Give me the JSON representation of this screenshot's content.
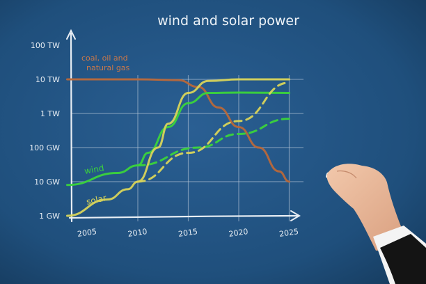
{
  "chart_data": {
    "type": "line",
    "title": "wind and solar power",
    "x_ticks": [
      "2005",
      "2010",
      "2015",
      "2020",
      "2025"
    ],
    "y_ticks": [
      "1 GW",
      "10 GW",
      "100 GW",
      "1 TW",
      "10 TW",
      "100 TW"
    ],
    "y_scale": "log",
    "xlim": [
      2003,
      2027
    ],
    "grid": true,
    "series": [
      {
        "name": "coal, oil and natural gas",
        "color": "#b8683a",
        "style": "solid",
        "points": [
          [
            2003,
            10
          ],
          [
            2010,
            10
          ],
          [
            2014,
            9.5
          ],
          [
            2016,
            6
          ],
          [
            2018,
            1.5
          ],
          [
            2020,
            0.4
          ],
          [
            2022,
            0.1
          ],
          [
            2024,
            0.02
          ],
          [
            2025,
            0.01
          ]
        ]
      },
      {
        "name": "wind",
        "color": "#3bd43b",
        "style": "solid",
        "points": [
          [
            2003,
            0.008
          ],
          [
            2008,
            0.018
          ],
          [
            2010,
            0.03
          ],
          [
            2011,
            0.07
          ],
          [
            2013,
            0.4
          ],
          [
            2015,
            2
          ],
          [
            2017,
            4
          ],
          [
            2020,
            4.1
          ],
          [
            2025,
            4
          ]
        ]
      },
      {
        "name": "wind (projected)",
        "color": "#3bd43b",
        "style": "dashed",
        "points": [
          [
            2010,
            0.03
          ],
          [
            2016,
            0.1
          ],
          [
            2020,
            0.25
          ],
          [
            2025,
            0.7
          ]
        ]
      },
      {
        "name": "solar",
        "color": "#d8d45a",
        "style": "solid",
        "points": [
          [
            2003,
            0.001
          ],
          [
            2007,
            0.003
          ],
          [
            2009,
            0.006
          ],
          [
            2010,
            0.01
          ],
          [
            2012,
            0.1
          ],
          [
            2013,
            0.5
          ],
          [
            2015,
            4
          ],
          [
            2017,
            9
          ],
          [
            2020,
            10
          ],
          [
            2025,
            10
          ]
        ]
      },
      {
        "name": "solar (projected)",
        "color": "#d8d45a",
        "style": "dashed",
        "points": [
          [
            2010,
            0.01
          ],
          [
            2015,
            0.07
          ],
          [
            2020,
            0.6
          ],
          [
            2025,
            8
          ]
        ]
      }
    ],
    "labels": {
      "fossil": "coal, oil and natural gas",
      "wind": "wind",
      "solar": "solar"
    }
  },
  "colors": {
    "board": "#1f4f7c",
    "chalk": "#e8eef4",
    "grid": "#b9c8d8",
    "fossil": "#b8683a",
    "wind": "#3bd43b",
    "solar": "#d8d45a",
    "sleeve": "#141414",
    "skin": "#e9b89a",
    "chalk_stick": "#ffffff"
  }
}
